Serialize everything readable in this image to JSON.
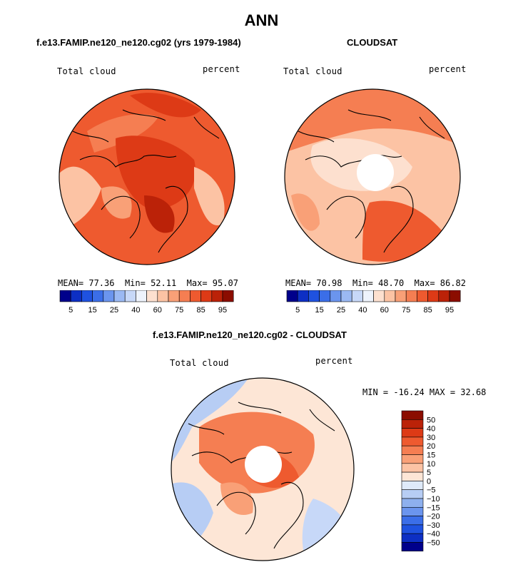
{
  "title": "ANN",
  "panels": [
    {
      "id": "model",
      "title": "f.e13.FAMIP.ne120_ne120.cg02 (yrs 1979-1984)",
      "left_label": "Total cloud",
      "right_label": "percent",
      "stats": {
        "mean_label": "MEAN=",
        "mean": "77.36",
        "min_label": "Min=",
        "min": "52.11",
        "max_label": "Max=",
        "max": "95.07"
      },
      "colorbar_ticks": [
        "5",
        "15",
        "25",
        "40",
        "60",
        "75",
        "85",
        "95"
      ]
    },
    {
      "id": "cloudsat",
      "title": "CLOUDSAT",
      "left_label": "Total cloud",
      "right_label": "percent",
      "stats": {
        "mean_label": "MEAN=",
        "mean": "70.98",
        "min_label": "Min=",
        "min": "48.70",
        "max_label": "Max=",
        "max": "86.82"
      },
      "colorbar_ticks": [
        "5",
        "15",
        "25",
        "40",
        "60",
        "75",
        "85",
        "95"
      ]
    },
    {
      "id": "difference",
      "title": "f.e13.FAMIP.ne120_ne120.cg02 - CLOUDSAT",
      "left_label": "Total cloud",
      "right_label": "percent",
      "stats_text": "MIN = -16.24 MAX =  32.68",
      "colorbar_ticks": [
        "50",
        "40",
        "30",
        "20",
        "15",
        "10",
        "5",
        "0",
        "−5",
        "−10",
        "−15",
        "−20",
        "−30",
        "−40",
        "−50"
      ]
    }
  ],
  "colors": {
    "abs_scale": [
      "#00008b",
      "#0d2fc4",
      "#1f52e0",
      "#3b6ee8",
      "#6b95ee",
      "#9bb9f3",
      "#c7d8f8",
      "#eef3fc",
      "#fde0cf",
      "#fcc3a4",
      "#f9a077",
      "#f57e52",
      "#ee5a2f",
      "#dd3a16",
      "#bb2208",
      "#8b0d00"
    ],
    "diff_scale": [
      "#8b0d00",
      "#bb2208",
      "#dd3a16",
      "#ee5a2f",
      "#f57e52",
      "#f9a077",
      "#fcc3a4",
      "#fde6d6",
      "#dfeaf9",
      "#b7cdf4",
      "#8eb0ee",
      "#6b95ee",
      "#3b6ee8",
      "#1f52e0",
      "#0d2fc4",
      "#00008b"
    ]
  }
}
